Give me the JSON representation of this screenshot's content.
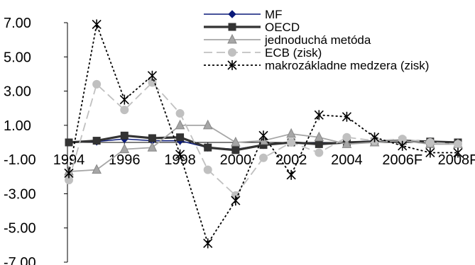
{
  "chart_data": {
    "type": "line",
    "title": "",
    "xlabel": "",
    "ylabel": "",
    "ylim": [
      -7,
      7
    ],
    "grid": false,
    "legend_position": "top-right",
    "y_ticks": [
      "7.00",
      "5.00",
      "3.00",
      "1.00",
      "-1.00",
      "-3.00",
      "-5.00",
      "-7.00"
    ],
    "y_tick_values": [
      7,
      5,
      3,
      1,
      -1,
      -3,
      -5,
      -7
    ],
    "x_categories": [
      "1994",
      "1995",
      "1996",
      "1997",
      "1998",
      "1999",
      "2000",
      "2001",
      "2002",
      "2003",
      "2004",
      "2005",
      "2006F",
      "2007F",
      "2008F"
    ],
    "x_tick_labels": [
      "1994",
      "",
      "1996",
      "",
      "1998",
      "",
      "2000",
      "",
      "2002",
      "",
      "2004",
      "",
      "2006F",
      "",
      "2008F"
    ],
    "series": [
      {
        "name": "MF",
        "color": "#0a1a7a",
        "marker": "diamond",
        "dash": "solid",
        "values": [
          0.0,
          0.05,
          0.2,
          0.1,
          0.1,
          -0.3,
          -0.4,
          -0.15,
          0.0,
          -0.05,
          0.0,
          0.1,
          0.1,
          0.05,
          0.0
        ]
      },
      {
        "name": "OECD",
        "color": "#333333",
        "marker": "square",
        "dash": "solid",
        "values": [
          0.0,
          0.1,
          0.4,
          0.25,
          0.3,
          -0.3,
          -0.45,
          -0.15,
          0.0,
          -0.1,
          0.0,
          0.05,
          0.1,
          0.05,
          0.0
        ]
      },
      {
        "name": "jednoduchá metóda",
        "color": "#a6a6a6",
        "marker": "triangle",
        "dash": "solid",
        "values": [
          -1.7,
          -1.6,
          -0.4,
          -0.3,
          1.0,
          1.0,
          0.0,
          0.1,
          0.5,
          0.3,
          -0.1,
          0.0,
          0.1,
          -0.1,
          -0.1
        ]
      },
      {
        "name": "ECB (zisk)",
        "color": "#c0c0c0",
        "marker": "circle",
        "dash": "dashed",
        "values": [
          -2.2,
          3.4,
          1.9,
          3.5,
          1.7,
          -1.6,
          -3.1,
          -0.9,
          0.0,
          -0.6,
          0.3,
          0.1,
          0.2,
          0.0,
          -0.1
        ]
      },
      {
        "name": "makrozákladne medzera (zisk)",
        "color": "#000000",
        "marker": "star",
        "dash": "dotted",
        "values": [
          -1.8,
          6.9,
          2.5,
          3.9,
          -0.7,
          -5.9,
          -3.4,
          0.4,
          -1.9,
          1.6,
          1.5,
          0.3,
          -0.2,
          -0.6,
          -0.6
        ]
      }
    ]
  }
}
